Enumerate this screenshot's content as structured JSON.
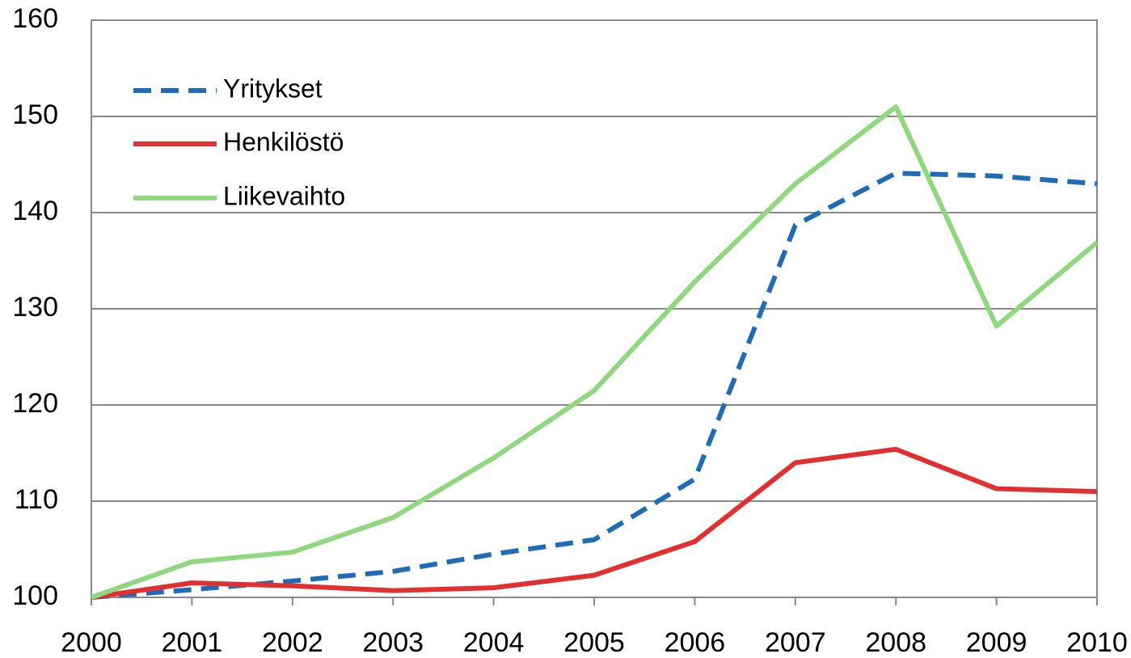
{
  "chart_data": {
    "type": "line",
    "x": [
      2000,
      2001,
      2002,
      2003,
      2004,
      2005,
      2006,
      2007,
      2008,
      2009,
      2010
    ],
    "xlim": [
      2000,
      2010
    ],
    "xticks": [
      2000,
      2001,
      2002,
      2003,
      2004,
      2005,
      2006,
      2007,
      2008,
      2009,
      2010
    ],
    "ylim": [
      100,
      160
    ],
    "yticks": [
      100,
      110,
      120,
      130,
      140,
      150,
      160
    ],
    "grid": true,
    "legend": "upper left",
    "series": [
      {
        "name": "Yritykset",
        "color": "#1f6bb8",
        "dashed": true,
        "values": [
          100,
          100.8,
          101.7,
          102.7,
          104.5,
          106,
          112.3,
          138.7,
          144.1,
          143.8,
          143
        ]
      },
      {
        "name": "Henkilöstö",
        "color": "#e03030",
        "values": [
          100,
          101.5,
          101.2,
          100.7,
          101,
          102.3,
          105.8,
          114,
          115.4,
          111.3,
          111
        ]
      },
      {
        "name": "Liikevaihto",
        "color": "#90d880",
        "values": [
          100,
          103.7,
          104.7,
          108.3,
          114.5,
          121.5,
          132.8,
          143,
          151,
          128.2,
          136.9
        ]
      }
    ]
  }
}
